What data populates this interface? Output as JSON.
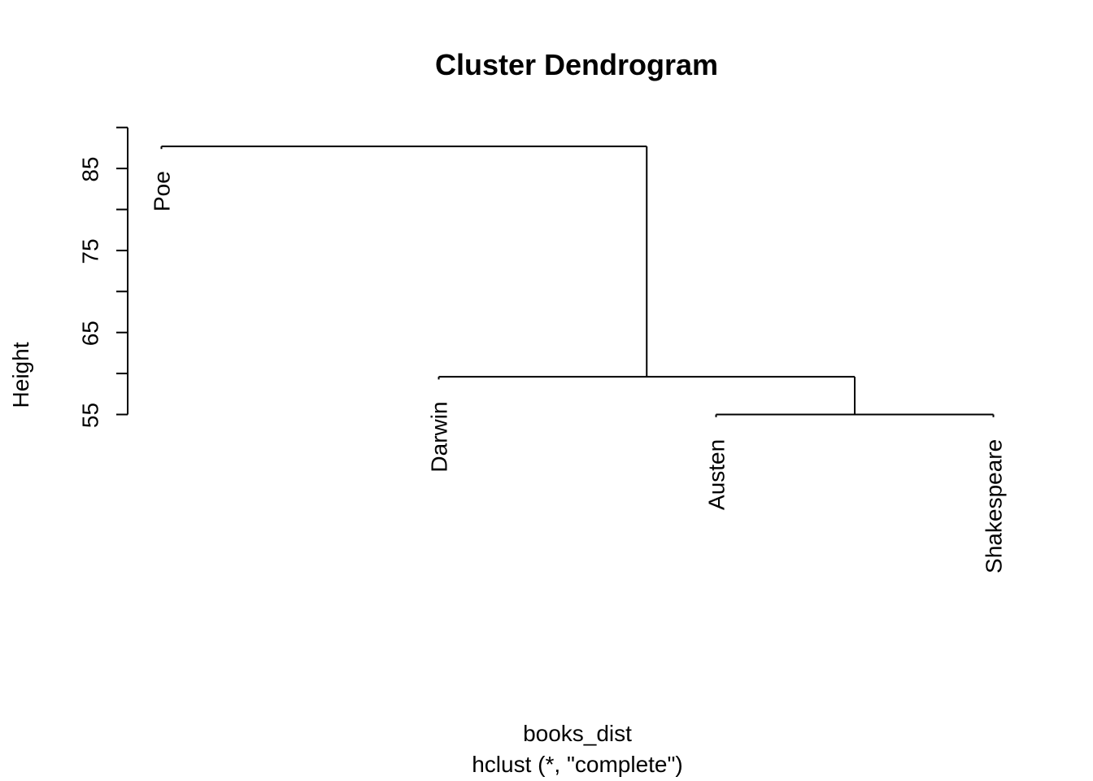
{
  "chart_data": {
    "type": "dendrogram",
    "title": "Cluster Dendrogram",
    "ylabel": "Height",
    "xlabel": "books_dist",
    "sublabel": "hclust (*, \"complete\")",
    "ylim": [
      55,
      90
    ],
    "y_ticks": [
      55,
      60,
      65,
      70,
      75,
      80,
      85,
      90
    ],
    "y_tick_labels": [
      {
        "value": 55,
        "label": "55"
      },
      {
        "value": 65,
        "label": "65"
      },
      {
        "value": 75,
        "label": "75"
      },
      {
        "value": 85,
        "label": "85"
      }
    ],
    "leaves": [
      "Poe",
      "Darwin",
      "Austen",
      "Shakespeare"
    ],
    "merges": [
      {
        "left": "Austen",
        "right": "Shakespeare",
        "height": 55.0
      },
      {
        "left": "Darwin",
        "right": [
          "Austen",
          "Shakespeare"
        ],
        "height": 59.6
      },
      {
        "left": "Poe",
        "right": [
          "Darwin",
          "Austen",
          "Shakespeare"
        ],
        "height": 87.7
      }
    ],
    "hang": 0.1
  }
}
